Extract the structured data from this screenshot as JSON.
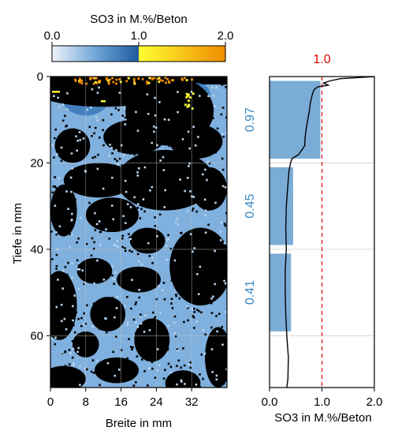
{
  "colorbar": {
    "title": "SO3 in M.%/Beton",
    "ticks": [
      "0.0",
      "1.0",
      "2.0"
    ],
    "colors": {
      "low": "#eaf1f8",
      "mid": "#2a6bb0",
      "midhi": "#1f5aa0",
      "high_start": "#ffff33",
      "high_end": "#f08c00"
    }
  },
  "chart_data": [
    {
      "type": "heatmap",
      "xlabel": "Breite in mm",
      "ylabel": "Tiefe in mm",
      "xticks": [
        0,
        8,
        16,
        24,
        32
      ],
      "yticks": [
        0,
        20,
        40,
        60
      ],
      "xlim": [
        0,
        40
      ],
      "ylim": [
        72,
        0
      ],
      "grid": true,
      "colors": {
        "matrix": "#7fb0de",
        "void": "#000000",
        "hot": "#f08c00",
        "mid": "#3a78bb"
      }
    },
    {
      "type": "bar",
      "orientation": "horizontal",
      "xlabel": "SO3 in M.%/Beton",
      "xticks": [
        "0.0",
        "1.0",
        "2.0"
      ],
      "xlim": [
        0,
        2
      ],
      "ylim": [
        72,
        0
      ],
      "grid": true,
      "bars": [
        {
          "label": "0.97",
          "value": 0.97,
          "depth_from": 1,
          "depth_to": 19
        },
        {
          "label": "0.45",
          "value": 0.45,
          "depth_from": 21,
          "depth_to": 39
        },
        {
          "label": "0.41",
          "value": 0.41,
          "depth_from": 41,
          "depth_to": 59
        }
      ],
      "bar_color": "#7aacd6",
      "label_color": "#3a86c0",
      "reference_line": {
        "value": 1.0,
        "label": "1.0",
        "color": "#e00000"
      },
      "profile": {
        "depth": [
          0,
          0.5,
          1,
          1.5,
          2,
          2.4,
          3,
          4,
          6,
          8,
          10,
          12,
          14,
          16,
          18,
          19,
          20,
          22,
          25,
          30,
          35,
          40,
          45,
          50,
          55,
          60,
          65,
          70,
          72
        ],
        "value": [
          2.0,
          1.35,
          1.15,
          1.03,
          1.12,
          0.92,
          0.85,
          0.82,
          0.78,
          0.76,
          0.73,
          0.7,
          0.68,
          0.67,
          0.56,
          0.43,
          0.4,
          0.37,
          0.35,
          0.32,
          0.31,
          0.32,
          0.3,
          0.3,
          0.31,
          0.33,
          0.36,
          0.35,
          0.33
        ]
      }
    }
  ]
}
